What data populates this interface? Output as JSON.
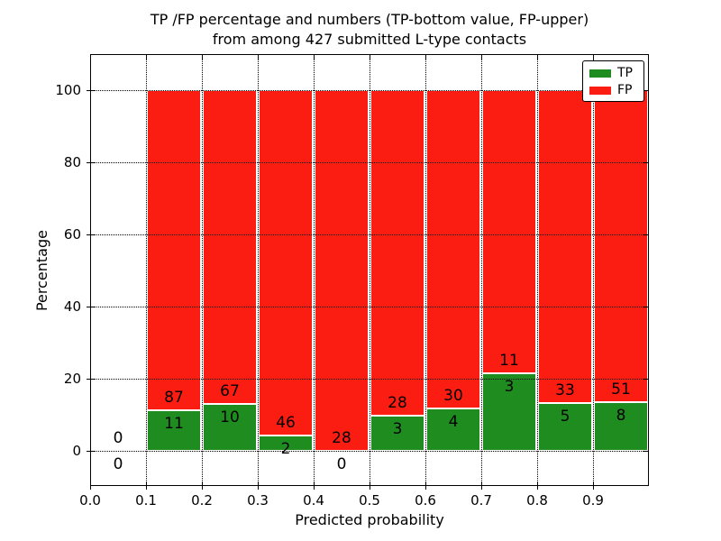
{
  "figure": {
    "title_line1": "TP /FP percentage and numbers (TP-bottom value, FP-upper)",
    "title_line2": "from among 427 submitted L-type contacts",
    "xlabel": "Predicted probability",
    "ylabel": "Percentage",
    "background": "#ffffff"
  },
  "legend": {
    "position": "upper-right",
    "items": [
      {
        "label": "TP",
        "color": "#1e8c1e"
      },
      {
        "label": "FP",
        "color": "#fb1d12"
      }
    ]
  },
  "chart_data": {
    "type": "bar",
    "stacked": true,
    "title": "TP /FP percentage and numbers (TP-bottom value, FP-upper) from among 427 submitted L-type contacts",
    "xlabel": "Predicted probability",
    "ylabel": "Percentage",
    "total_contacts": 427,
    "xlim": [
      0.0,
      1.0
    ],
    "ylim": [
      -10,
      110
    ],
    "grid": "dotted",
    "legend_position": "upper-right",
    "bin_width": 0.1,
    "series_names": [
      "TP",
      "FP"
    ],
    "colors": {
      "TP": "#1e8c1e",
      "FP": "#fb1d12",
      "grid": "#000000",
      "bar_edge": "#ffffff"
    },
    "x_ticks": [
      {
        "v": 0.0,
        "label": "0.0"
      },
      {
        "v": 0.1,
        "label": "0.1"
      },
      {
        "v": 0.2,
        "label": "0.2"
      },
      {
        "v": 0.3,
        "label": "0.3"
      },
      {
        "v": 0.4,
        "label": "0.4"
      },
      {
        "v": 0.5,
        "label": "0.5"
      },
      {
        "v": 0.6,
        "label": "0.6"
      },
      {
        "v": 0.7,
        "label": "0.7"
      },
      {
        "v": 0.8,
        "label": "0.8"
      },
      {
        "v": 0.9,
        "label": "0.9"
      }
    ],
    "y_ticks": [
      {
        "v": 0,
        "label": "0"
      },
      {
        "v": 20,
        "label": "20"
      },
      {
        "v": 40,
        "label": "40"
      },
      {
        "v": 60,
        "label": "60"
      },
      {
        "v": 80,
        "label": "80"
      },
      {
        "v": 100,
        "label": "100"
      }
    ],
    "bins": [
      {
        "x_start": 0.0,
        "x_end": 0.1,
        "tp": 0,
        "fp": 0,
        "tp_pct": 0.0,
        "fp_pct": 0.0,
        "has_bar": false
      },
      {
        "x_start": 0.1,
        "x_end": 0.2,
        "tp": 11,
        "fp": 87,
        "tp_pct": 11.22,
        "fp_pct": 88.78,
        "has_bar": true
      },
      {
        "x_start": 0.2,
        "x_end": 0.3,
        "tp": 10,
        "fp": 67,
        "tp_pct": 12.99,
        "fp_pct": 87.01,
        "has_bar": true
      },
      {
        "x_start": 0.3,
        "x_end": 0.4,
        "tp": 2,
        "fp": 46,
        "tp_pct": 4.17,
        "fp_pct": 95.83,
        "has_bar": true
      },
      {
        "x_start": 0.4,
        "x_end": 0.5,
        "tp": 0,
        "fp": 28,
        "tp_pct": 0.0,
        "fp_pct": 100.0,
        "has_bar": true
      },
      {
        "x_start": 0.5,
        "x_end": 0.6,
        "tp": 3,
        "fp": 28,
        "tp_pct": 9.68,
        "fp_pct": 90.32,
        "has_bar": true
      },
      {
        "x_start": 0.6,
        "x_end": 0.7,
        "tp": 4,
        "fp": 30,
        "tp_pct": 11.76,
        "fp_pct": 88.24,
        "has_bar": true
      },
      {
        "x_start": 0.7,
        "x_end": 0.8,
        "tp": 3,
        "fp": 11,
        "tp_pct": 21.43,
        "fp_pct": 78.57,
        "has_bar": true
      },
      {
        "x_start": 0.8,
        "x_end": 0.9,
        "tp": 5,
        "fp": 33,
        "tp_pct": 13.16,
        "fp_pct": 86.84,
        "has_bar": true
      },
      {
        "x_start": 0.9,
        "x_end": 1.0,
        "tp": 8,
        "fp": 51,
        "tp_pct": 13.56,
        "fp_pct": 86.44,
        "has_bar": true
      }
    ]
  }
}
